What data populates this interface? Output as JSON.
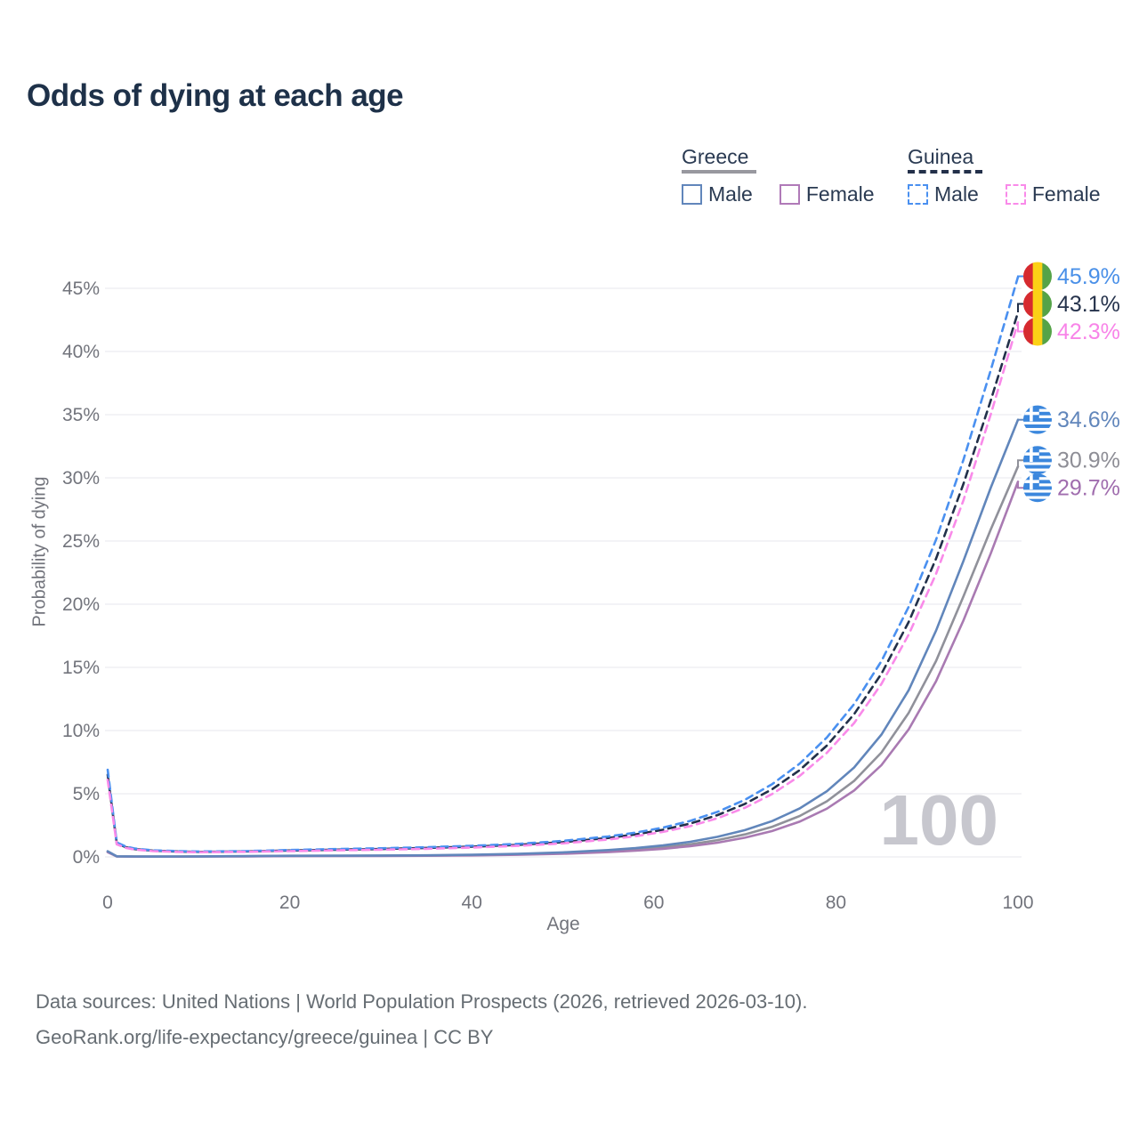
{
  "footer": {
    "line1": "Data sources: United Nations | World Population Prospects (2026, retrieved 2026-03-10).",
    "line2": "GeoRank.org/life-expectancy/greece/guinea | CC BY"
  },
  "legend": {
    "groups": [
      {
        "name": "Greece",
        "underline_color": "#98989f",
        "underline_style": "solid",
        "items": [
          {
            "label": "Male",
            "color": "#6186bb",
            "dash": false
          },
          {
            "label": "Female",
            "color": "#b07ab8",
            "dash": false
          }
        ]
      },
      {
        "name": "Guinea",
        "underline_color": "#23304a",
        "underline_style": "dashed",
        "items": [
          {
            "label": "Male",
            "color": "#4a90f0",
            "dash": true
          },
          {
            "label": "Female",
            "color": "#f98ae9",
            "dash": true
          }
        ]
      }
    ]
  },
  "chart_data": {
    "type": "line",
    "title": "Odds of dying at each age",
    "xlabel": "Age",
    "ylabel": "Probability of dying",
    "xlim": [
      0,
      100
    ],
    "ylim": [
      0,
      46
    ],
    "xticks": [
      0,
      20,
      40,
      60,
      80,
      100
    ],
    "ytick_values": [
      0,
      5,
      10,
      15,
      20,
      25,
      30,
      35,
      40,
      45
    ],
    "ytick_labels": [
      "0%",
      "5%",
      "10%",
      "15%",
      "20%",
      "25%",
      "30%",
      "35%",
      "40%",
      "45%"
    ],
    "grid": "horizontal",
    "legend_position": "top-right",
    "watermark": "100",
    "series": [
      {
        "id": "guinea-both",
        "name": "Guinea Both sexes",
        "country": "Guinea",
        "sex": "Both",
        "color": "#22304a",
        "label_color": "#26334c",
        "dash": true,
        "flag": "guinea",
        "end_label": "43.1%",
        "end_value": 43.1,
        "points": [
          [
            0,
            6.5
          ],
          [
            1,
            1.08
          ],
          [
            2,
            0.77
          ],
          [
            3,
            0.62
          ],
          [
            5,
            0.49
          ],
          [
            8,
            0.42
          ],
          [
            10,
            0.4
          ],
          [
            15,
            0.43
          ],
          [
            20,
            0.51
          ],
          [
            25,
            0.57
          ],
          [
            30,
            0.63
          ],
          [
            35,
            0.71
          ],
          [
            40,
            0.81
          ],
          [
            45,
            0.95
          ],
          [
            50,
            1.17
          ],
          [
            55,
            1.5
          ],
          [
            58,
            1.78
          ],
          [
            61,
            2.15
          ],
          [
            64,
            2.64
          ],
          [
            67,
            3.31
          ],
          [
            70,
            4.2
          ],
          [
            73,
            5.36
          ],
          [
            76,
            6.86
          ],
          [
            79,
            8.81
          ],
          [
            82,
            11.3
          ],
          [
            85,
            14.5
          ],
          [
            88,
            18.6
          ],
          [
            91,
            23.6
          ],
          [
            94,
            29.5
          ],
          [
            97,
            36.1
          ],
          [
            100,
            43.1
          ]
        ]
      },
      {
        "id": "guinea-male",
        "name": "Guinea Male",
        "country": "Guinea",
        "sex": "Male",
        "color": "#4a90f0",
        "label_color": "#4a90e8",
        "dash": true,
        "flag": "guinea",
        "end_label": "45.9%",
        "end_value": 45.9,
        "points": [
          [
            0,
            6.9
          ],
          [
            1,
            1.15
          ],
          [
            2,
            0.82
          ],
          [
            3,
            0.66
          ],
          [
            5,
            0.52
          ],
          [
            8,
            0.45
          ],
          [
            10,
            0.43
          ],
          [
            15,
            0.46
          ],
          [
            20,
            0.55
          ],
          [
            25,
            0.62
          ],
          [
            30,
            0.68
          ],
          [
            35,
            0.77
          ],
          [
            40,
            0.88
          ],
          [
            45,
            1.03
          ],
          [
            50,
            1.27
          ],
          [
            55,
            1.62
          ],
          [
            58,
            1.92
          ],
          [
            61,
            2.32
          ],
          [
            64,
            2.85
          ],
          [
            67,
            3.57
          ],
          [
            70,
            4.52
          ],
          [
            73,
            5.76
          ],
          [
            76,
            7.37
          ],
          [
            79,
            9.45
          ],
          [
            82,
            12.1
          ],
          [
            85,
            15.5
          ],
          [
            88,
            19.8
          ],
          [
            91,
            25.1
          ],
          [
            94,
            31.4
          ],
          [
            97,
            38.5
          ],
          [
            100,
            45.9
          ]
        ]
      },
      {
        "id": "guinea-female",
        "name": "Guinea Female",
        "country": "Guinea",
        "sex": "Female",
        "color": "#f98ae9",
        "label_color": "#f884e8",
        "dash": true,
        "flag": "guinea",
        "end_label": "42.3%",
        "end_value": 42.3,
        "points": [
          [
            0,
            6.1
          ],
          [
            1,
            1.0
          ],
          [
            2,
            0.71
          ],
          [
            3,
            0.58
          ],
          [
            5,
            0.46
          ],
          [
            8,
            0.39
          ],
          [
            10,
            0.37
          ],
          [
            15,
            0.4
          ],
          [
            20,
            0.46
          ],
          [
            25,
            0.52
          ],
          [
            30,
            0.57
          ],
          [
            35,
            0.64
          ],
          [
            40,
            0.74
          ],
          [
            45,
            0.87
          ],
          [
            50,
            1.07
          ],
          [
            55,
            1.38
          ],
          [
            58,
            1.64
          ],
          [
            61,
            1.98
          ],
          [
            64,
            2.44
          ],
          [
            67,
            3.06
          ],
          [
            70,
            3.89
          ],
          [
            73,
            4.98
          ],
          [
            76,
            6.4
          ],
          [
            79,
            8.24
          ],
          [
            82,
            10.6
          ],
          [
            85,
            13.7
          ],
          [
            88,
            17.6
          ],
          [
            91,
            22.4
          ],
          [
            94,
            28.2
          ],
          [
            97,
            35.0
          ],
          [
            100,
            42.3
          ]
        ]
      },
      {
        "id": "greece-both",
        "name": "Greece Both sexes",
        "country": "Greece",
        "sex": "Both",
        "color": "#90919a",
        "label_color": "#8e8e96",
        "dash": false,
        "flag": "greece",
        "end_label": "30.9%",
        "end_value": 30.9,
        "points": [
          [
            0,
            0.41
          ],
          [
            1,
            0.042
          ],
          [
            2,
            0.033
          ],
          [
            3,
            0.028
          ],
          [
            5,
            0.025
          ],
          [
            8,
            0.028
          ],
          [
            10,
            0.032
          ],
          [
            15,
            0.05
          ],
          [
            20,
            0.075
          ],
          [
            25,
            0.085
          ],
          [
            30,
            0.095
          ],
          [
            35,
            0.11
          ],
          [
            40,
            0.14
          ],
          [
            45,
            0.2
          ],
          [
            50,
            0.3
          ],
          [
            55,
            0.45
          ],
          [
            58,
            0.58
          ],
          [
            61,
            0.76
          ],
          [
            64,
            1.0
          ],
          [
            67,
            1.33
          ],
          [
            70,
            1.78
          ],
          [
            73,
            2.39
          ],
          [
            76,
            3.23
          ],
          [
            79,
            4.4
          ],
          [
            82,
            6.02
          ],
          [
            85,
            8.27
          ],
          [
            88,
            11.4
          ],
          [
            91,
            15.5
          ],
          [
            94,
            20.6
          ],
          [
            97,
            25.9
          ],
          [
            100,
            30.9
          ]
        ]
      },
      {
        "id": "greece-female",
        "name": "Greece Female",
        "country": "Greece",
        "sex": "Female",
        "color": "#a97ab2",
        "label_color": "#a06dae",
        "dash": false,
        "flag": "greece",
        "end_label": "29.7%",
        "end_value": 29.7,
        "points": [
          [
            0,
            0.37
          ],
          [
            1,
            0.035
          ],
          [
            2,
            0.027
          ],
          [
            3,
            0.023
          ],
          [
            5,
            0.02
          ],
          [
            8,
            0.023
          ],
          [
            10,
            0.027
          ],
          [
            15,
            0.04
          ],
          [
            20,
            0.06
          ],
          [
            25,
            0.07
          ],
          [
            30,
            0.08
          ],
          [
            35,
            0.095
          ],
          [
            40,
            0.12
          ],
          [
            45,
            0.17
          ],
          [
            50,
            0.25
          ],
          [
            55,
            0.38
          ],
          [
            58,
            0.49
          ],
          [
            61,
            0.64
          ],
          [
            64,
            0.85
          ],
          [
            67,
            1.13
          ],
          [
            70,
            1.52
          ],
          [
            73,
            2.05
          ],
          [
            76,
            2.79
          ],
          [
            79,
            3.82
          ],
          [
            82,
            5.26
          ],
          [
            85,
            7.27
          ],
          [
            88,
            10.1
          ],
          [
            91,
            13.9
          ],
          [
            94,
            18.7
          ],
          [
            97,
            24.0
          ],
          [
            100,
            29.7
          ]
        ]
      },
      {
        "id": "greece-male",
        "name": "Greece Male",
        "country": "Greece",
        "sex": "Male",
        "color": "#6186bb",
        "label_color": "#6186bb",
        "dash": false,
        "flag": "greece",
        "end_label": "34.6%",
        "end_value": 34.6,
        "points": [
          [
            0,
            0.45
          ],
          [
            1,
            0.05
          ],
          [
            2,
            0.04
          ],
          [
            3,
            0.035
          ],
          [
            5,
            0.03
          ],
          [
            8,
            0.035
          ],
          [
            10,
            0.04
          ],
          [
            15,
            0.06
          ],
          [
            20,
            0.09
          ],
          [
            25,
            0.1
          ],
          [
            30,
            0.11
          ],
          [
            35,
            0.13
          ],
          [
            40,
            0.17
          ],
          [
            45,
            0.24
          ],
          [
            50,
            0.36
          ],
          [
            55,
            0.54
          ],
          [
            58,
            0.7
          ],
          [
            61,
            0.91
          ],
          [
            64,
            1.2
          ],
          [
            67,
            1.59
          ],
          [
            70,
            2.12
          ],
          [
            73,
            2.84
          ],
          [
            76,
            3.83
          ],
          [
            79,
            5.2
          ],
          [
            82,
            7.08
          ],
          [
            85,
            9.68
          ],
          [
            88,
            13.2
          ],
          [
            91,
            17.9
          ],
          [
            94,
            23.4
          ],
          [
            97,
            29.2
          ],
          [
            100,
            34.6
          ]
        ]
      }
    ]
  }
}
